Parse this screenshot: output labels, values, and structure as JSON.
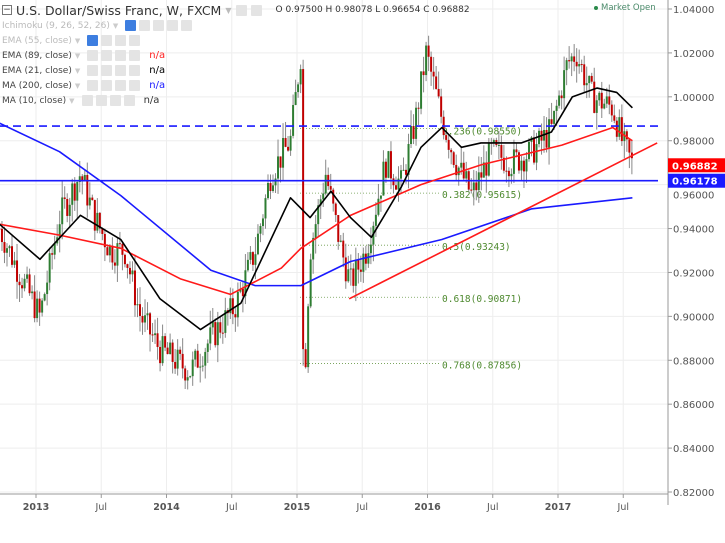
{
  "header": {
    "symbol_title": "U.S. Dollar/Swiss Franc, W, FXCM",
    "ohlc": "O 0.97500 H 0.98078 L 0.96654 C 0.96882",
    "market_status": "Market Open"
  },
  "indicators": [
    {
      "label": "Ichimoku (9, 26, 52, 26)",
      "value": "",
      "color": "#bbbbbb",
      "hidden": true
    },
    {
      "label": "EMA (55, close)",
      "value": "",
      "color": "#bbbbbb",
      "hidden": true
    },
    {
      "label": "EMA (89, close)",
      "value": "n/a",
      "color": "#ff2222"
    },
    {
      "label": "EMA (21, close)",
      "value": "n/a",
      "color": "#000000"
    },
    {
      "label": "MA (200, close)",
      "value": "n/a",
      "color": "#1a1aff"
    },
    {
      "label": "MA (10, close)",
      "value": "n/a",
      "color": "#333333"
    }
  ],
  "chart_data": {
    "type": "candlestick",
    "title": "U.S. Dollar/Swiss Franc, W, FXCM",
    "ylim": [
      0.82,
      1.04
    ],
    "y_ticks": [
      "1.04000",
      "1.02000",
      "1.00000",
      "0.98000",
      "0.96000",
      "0.94000",
      "0.92000",
      "0.90000",
      "0.88000",
      "0.86000",
      "0.84000",
      "0.82000"
    ],
    "x_ticks": [
      {
        "label": "2013",
        "t": 2013.0
      },
      {
        "label": "Jul",
        "t": 2013.5
      },
      {
        "label": "2014",
        "t": 2014.0
      },
      {
        "label": "Jul",
        "t": 2014.5
      },
      {
        "label": "2015",
        "t": 2015.0
      },
      {
        "label": "Jul",
        "t": 2015.5
      },
      {
        "label": "2016",
        "t": 2016.0
      },
      {
        "label": "Jul",
        "t": 2016.5
      },
      {
        "label": "2017",
        "t": 2017.0
      },
      {
        "label": "Jul",
        "t": 2017.5
      }
    ],
    "price_path": [
      [
        2012.72,
        0.94
      ],
      [
        2012.87,
        0.92
      ],
      [
        2013.03,
        0.9
      ],
      [
        2013.18,
        0.945
      ],
      [
        2013.34,
        0.965
      ],
      [
        2013.45,
        0.945
      ],
      [
        2013.57,
        0.93
      ],
      [
        2013.68,
        0.93
      ],
      [
        2013.8,
        0.9
      ],
      [
        2013.95,
        0.885
      ],
      [
        2014.18,
        0.875
      ],
      [
        2014.34,
        0.89
      ],
      [
        2014.53,
        0.905
      ],
      [
        2014.68,
        0.93
      ],
      [
        2014.8,
        0.965
      ],
      [
        2014.95,
        0.98
      ],
      [
        2015.03,
        1.02
      ],
      [
        2015.05,
        0.86
      ],
      [
        2015.1,
        0.93
      ],
      [
        2015.22,
        0.965
      ],
      [
        2015.34,
        0.93
      ],
      [
        2015.41,
        0.915
      ],
      [
        2015.53,
        0.93
      ],
      [
        2015.68,
        0.97
      ],
      [
        2015.8,
        0.96
      ],
      [
        2015.91,
        0.99
      ],
      [
        2015.99,
        1.02
      ],
      [
        2016.11,
        0.99
      ],
      [
        2016.22,
        0.97
      ],
      [
        2016.34,
        0.955
      ],
      [
        2016.49,
        0.975
      ],
      [
        2016.65,
        0.97
      ],
      [
        2016.8,
        0.975
      ],
      [
        2016.95,
        0.985
      ],
      [
        2017.07,
        1.015
      ],
      [
        2017.14,
        1.02
      ],
      [
        2017.26,
        1.0
      ],
      [
        2017.42,
        0.995
      ],
      [
        2017.49,
        0.98
      ],
      [
        2017.57,
        0.969
      ]
    ],
    "series": [
      {
        "name": "MA (200, close)",
        "color": "#1a1aff",
        "points": [
          [
            2012.72,
            0.988
          ],
          [
            2013.18,
            0.975
          ],
          [
            2013.65,
            0.955
          ],
          [
            2014.34,
            0.921
          ],
          [
            2014.68,
            0.914
          ],
          [
            2015.03,
            0.914
          ],
          [
            2015.41,
            0.925
          ],
          [
            2016.11,
            0.935
          ],
          [
            2016.8,
            0.949
          ],
          [
            2017.57,
            0.954
          ]
        ]
      },
      {
        "name": "EMA (89, close)",
        "color": "#ff1a1a",
        "points": [
          [
            2012.72,
            0.942
          ],
          [
            2013.18,
            0.937
          ],
          [
            2013.65,
            0.931
          ],
          [
            2014.11,
            0.917
          ],
          [
            2014.49,
            0.91
          ],
          [
            2014.88,
            0.922
          ],
          [
            2015.03,
            0.931
          ],
          [
            2015.41,
            0.946
          ],
          [
            2015.95,
            0.96
          ],
          [
            2016.41,
            0.969
          ],
          [
            2017.03,
            0.978
          ],
          [
            2017.42,
            0.986
          ],
          [
            2017.57,
            0.98
          ]
        ]
      },
      {
        "name": "EMA (21, close)",
        "color": "#000000",
        "points": [
          [
            2012.72,
            0.942
          ],
          [
            2013.03,
            0.926
          ],
          [
            2013.34,
            0.946
          ],
          [
            2013.65,
            0.935
          ],
          [
            2013.95,
            0.908
          ],
          [
            2014.26,
            0.894
          ],
          [
            2014.57,
            0.906
          ],
          [
            2014.95,
            0.954
          ],
          [
            2015.1,
            0.945
          ],
          [
            2015.26,
            0.957
          ],
          [
            2015.41,
            0.945
          ],
          [
            2015.57,
            0.936
          ],
          [
            2015.8,
            0.959
          ],
          [
            2015.95,
            0.977
          ],
          [
            2016.11,
            0.986
          ],
          [
            2016.26,
            0.977
          ],
          [
            2016.41,
            0.979
          ],
          [
            2016.72,
            0.979
          ],
          [
            2016.95,
            0.984
          ],
          [
            2017.11,
            1.0
          ],
          [
            2017.3,
            1.004
          ],
          [
            2017.45,
            1.002
          ],
          [
            2017.57,
            0.995
          ]
        ]
      }
    ],
    "trendline": {
      "from": [
        2015.4,
        0.908
      ],
      "to": [
        2017.76,
        0.979
      ],
      "color": "#ff1a1a"
    },
    "horizontal_lines": [
      {
        "price": 0.9867,
        "style": "dashed",
        "color": "#1a1aff"
      },
      {
        "price": 0.96178,
        "style": "solid",
        "color": "#1a1aff"
      }
    ],
    "fibonacci": [
      {
        "label": "0.236(0.98550)",
        "price": 0.9855
      },
      {
        "label": "0.382(0.95615)",
        "price": 0.95615
      },
      {
        "label": "0.5(0.93243)",
        "price": 0.93243
      },
      {
        "label": "0.618(0.90871)",
        "price": 0.90871
      },
      {
        "label": "0.768(0.87856)",
        "price": 0.87856
      }
    ],
    "price_badges": [
      {
        "label": "0.96882",
        "color": "#ff0000"
      },
      {
        "label": "0.96178",
        "color": "#1a1aff"
      }
    ]
  }
}
